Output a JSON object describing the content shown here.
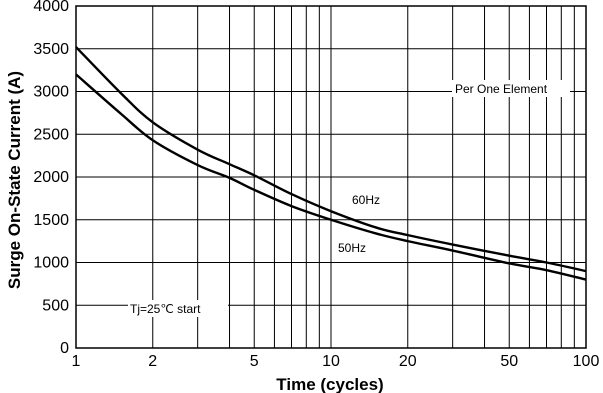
{
  "chart_data": {
    "type": "line",
    "xlabel": "Time (cycles)",
    "ylabel": "Surge On-State Current (A)",
    "xscale": "log",
    "xlim": [
      1,
      100
    ],
    "ylim": [
      0,
      4000
    ],
    "grid": true,
    "x_ticks": [
      1,
      2,
      5,
      10,
      20,
      50,
      100
    ],
    "y_ticks": [
      0,
      500,
      1000,
      1500,
      2000,
      2500,
      3000,
      3500,
      4000
    ],
    "annotations": [
      "Per One Element",
      "Tj=25℃ start"
    ],
    "series": [
      {
        "name": "60Hz",
        "x": [
          1,
          1.5,
          2,
          3,
          4,
          5,
          7,
          10,
          15,
          20,
          30,
          50,
          70,
          100
        ],
        "y": [
          3520,
          2980,
          2640,
          2320,
          2150,
          2020,
          1800,
          1600,
          1410,
          1320,
          1210,
          1080,
          1000,
          900
        ]
      },
      {
        "name": "50Hz",
        "x": [
          1,
          1.5,
          2,
          3,
          4,
          5,
          7,
          10,
          15,
          20,
          30,
          50,
          70,
          100
        ],
        "y": [
          3200,
          2740,
          2430,
          2140,
          1990,
          1850,
          1660,
          1500,
          1340,
          1250,
          1140,
          990,
          910,
          800
        ]
      }
    ]
  }
}
